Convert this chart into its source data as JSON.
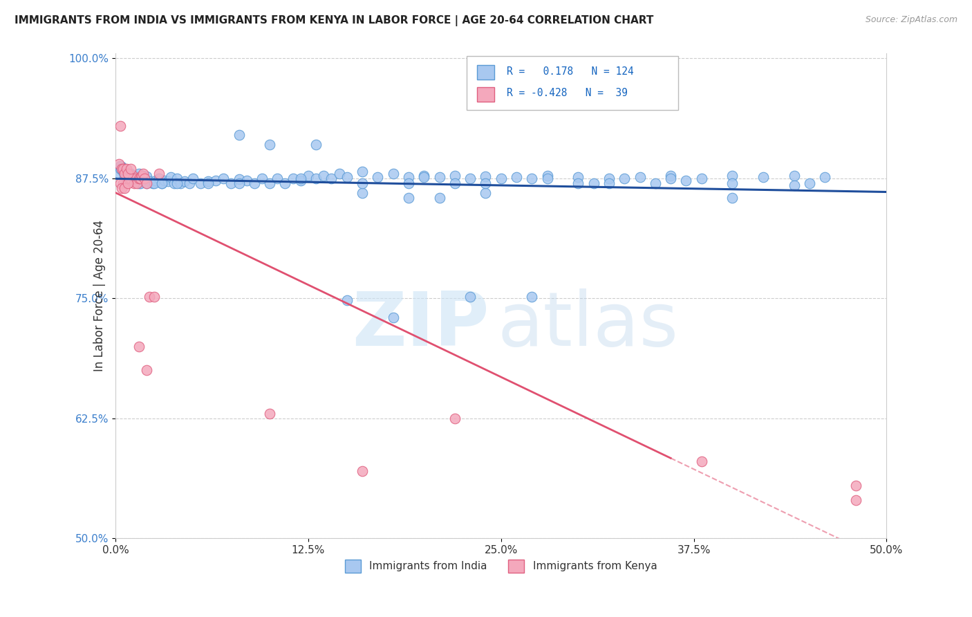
{
  "title": "IMMIGRANTS FROM INDIA VS IMMIGRANTS FROM KENYA IN LABOR FORCE | AGE 20-64 CORRELATION CHART",
  "source": "Source: ZipAtlas.com",
  "ylabel": "In Labor Force | Age 20-64",
  "xlim": [
    0.0,
    0.5
  ],
  "ylim": [
    0.5,
    1.005
  ],
  "xtick_labels": [
    "0.0%",
    "12.5%",
    "25.0%",
    "37.5%",
    "50.0%"
  ],
  "xtick_vals": [
    0.0,
    0.125,
    0.25,
    0.375,
    0.5
  ],
  "ytick_labels": [
    "50.0%",
    "62.5%",
    "75.0%",
    "87.5%",
    "100.0%"
  ],
  "ytick_vals": [
    0.5,
    0.625,
    0.75,
    0.875,
    1.0
  ],
  "india_color": "#A8C8F0",
  "kenya_color": "#F4A8BC",
  "india_edge_color": "#5B9BD5",
  "kenya_edge_color": "#E06080",
  "india_R": 0.178,
  "india_N": 124,
  "kenya_R": -0.428,
  "kenya_N": 39,
  "india_line_color": "#1F4E9C",
  "kenya_line_color": "#E05070",
  "r_color": "#1565C0",
  "india_scatter_x": [
    0.002,
    0.003,
    0.004,
    0.005,
    0.006,
    0.007,
    0.008,
    0.009,
    0.01,
    0.011,
    0.012,
    0.013,
    0.014,
    0.015,
    0.016,
    0.017,
    0.018,
    0.019,
    0.02,
    0.022,
    0.024,
    0.026,
    0.028,
    0.03,
    0.032,
    0.034,
    0.036,
    0.038,
    0.04,
    0.042,
    0.045,
    0.048,
    0.05,
    0.055,
    0.06,
    0.065,
    0.07,
    0.075,
    0.08,
    0.085,
    0.09,
    0.095,
    0.1,
    0.105,
    0.11,
    0.115,
    0.12,
    0.125,
    0.13,
    0.135,
    0.14,
    0.145,
    0.15,
    0.16,
    0.17,
    0.18,
    0.19,
    0.2,
    0.21,
    0.22,
    0.23,
    0.24,
    0.25,
    0.26,
    0.27,
    0.28,
    0.3,
    0.32,
    0.34,
    0.36,
    0.38,
    0.4,
    0.42,
    0.44,
    0.46,
    0.003,
    0.004,
    0.005,
    0.006,
    0.007,
    0.008,
    0.009,
    0.01,
    0.011,
    0.012,
    0.013,
    0.014,
    0.015,
    0.016,
    0.02,
    0.025,
    0.03,
    0.04,
    0.06,
    0.08,
    0.1,
    0.13,
    0.16,
    0.19,
    0.21,
    0.24,
    0.3,
    0.35,
    0.4,
    0.45,
    0.08,
    0.12,
    0.16,
    0.2,
    0.24,
    0.28,
    0.32,
    0.36,
    0.4,
    0.44,
    0.33,
    0.37,
    0.27,
    0.31,
    0.18,
    0.22,
    0.15,
    0.19,
    0.23
  ],
  "india_scatter_y": [
    0.88,
    0.885,
    0.887,
    0.882,
    0.878,
    0.881,
    0.879,
    0.876,
    0.88,
    0.875,
    0.878,
    0.873,
    0.876,
    0.88,
    0.874,
    0.876,
    0.878,
    0.875,
    0.877,
    0.872,
    0.87,
    0.873,
    0.875,
    0.87,
    0.873,
    0.872,
    0.876,
    0.87,
    0.875,
    0.87,
    0.872,
    0.87,
    0.875,
    0.87,
    0.872,
    0.873,
    0.875,
    0.87,
    0.874,
    0.873,
    0.87,
    0.875,
    0.87,
    0.875,
    0.87,
    0.875,
    0.873,
    0.878,
    0.875,
    0.878,
    0.875,
    0.88,
    0.876,
    0.882,
    0.876,
    0.88,
    0.876,
    0.878,
    0.876,
    0.878,
    0.875,
    0.877,
    0.875,
    0.876,
    0.875,
    0.878,
    0.876,
    0.875,
    0.876,
    0.878,
    0.875,
    0.878,
    0.876,
    0.878,
    0.876,
    0.888,
    0.885,
    0.883,
    0.881,
    0.879,
    0.877,
    0.876,
    0.875,
    0.874,
    0.873,
    0.872,
    0.871,
    0.87,
    0.87,
    0.87,
    0.87,
    0.87,
    0.87,
    0.87,
    0.92,
    0.91,
    0.91,
    0.86,
    0.855,
    0.855,
    0.86,
    0.87,
    0.87,
    0.855,
    0.87,
    0.87,
    0.875,
    0.87,
    0.876,
    0.87,
    0.875,
    0.87,
    0.875,
    0.87,
    0.868,
    0.875,
    0.873,
    0.752,
    0.87,
    0.73,
    0.87,
    0.748,
    0.87,
    0.752
  ],
  "kenya_scatter_x": [
    0.002,
    0.003,
    0.004,
    0.005,
    0.006,
    0.007,
    0.008,
    0.009,
    0.01,
    0.011,
    0.012,
    0.013,
    0.014,
    0.015,
    0.016,
    0.017,
    0.018,
    0.019,
    0.02,
    0.022,
    0.025,
    0.028,
    0.005,
    0.006,
    0.007,
    0.008,
    0.01,
    0.003,
    0.004,
    0.006,
    0.008,
    0.1,
    0.16,
    0.22,
    0.38,
    0.48,
    0.48,
    0.015,
    0.02
  ],
  "kenya_scatter_y": [
    0.89,
    0.93,
    0.885,
    0.87,
    0.885,
    0.875,
    0.88,
    0.875,
    0.875,
    0.878,
    0.87,
    0.875,
    0.87,
    0.875,
    0.875,
    0.878,
    0.88,
    0.875,
    0.87,
    0.752,
    0.752,
    0.88,
    0.885,
    0.88,
    0.885,
    0.88,
    0.885,
    0.87,
    0.865,
    0.865,
    0.87,
    0.63,
    0.57,
    0.625,
    0.58,
    0.54,
    0.555,
    0.7,
    0.675
  ]
}
